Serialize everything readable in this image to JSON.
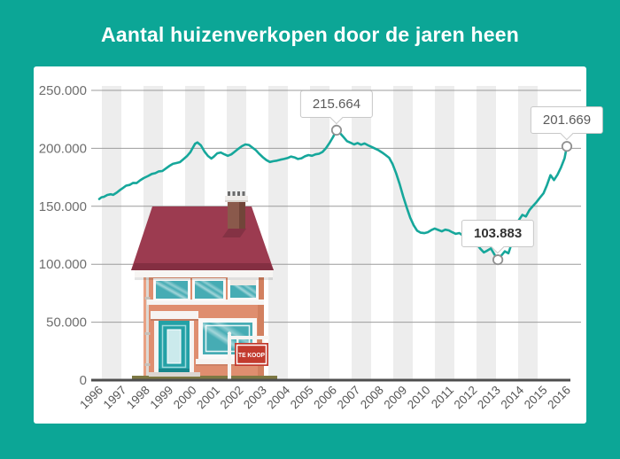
{
  "page": {
    "title": "Aantal huizenverkopen door de jaren heen",
    "background_color": "#0CA696",
    "card_color": "#FFFFFF"
  },
  "illustration": {
    "name": "huis-te-koop",
    "sign_text": "TE KOOP",
    "roof_color": "#9C3B50",
    "wall_color": "#DF8E6F",
    "sign_color": "#C23B2E"
  },
  "chart_data": {
    "type": "line",
    "title": "Aantal huizenverkopen door de jaren heen",
    "xlabel": "",
    "ylabel": "",
    "xlim": [
      1996,
      2016
    ],
    "ylim": [
      0,
      250000
    ],
    "grid": "horizontal",
    "background_stripes": true,
    "line_color": "#16A79B",
    "x_ticks": [
      "1996",
      "1997",
      "1998",
      "1999",
      "2000",
      "2001",
      "2002",
      "2003",
      "2004",
      "2005",
      "2006",
      "2007",
      "2008",
      "2009",
      "2010",
      "2011",
      "2012",
      "2013",
      "2014",
      "2015",
      "2016"
    ],
    "y_ticks": [
      {
        "value": 250000,
        "label": "250.000"
      },
      {
        "value": 200000,
        "label": "200.000"
      },
      {
        "value": 150000,
        "label": "150.000"
      },
      {
        "value": 100000,
        "label": "100.000"
      },
      {
        "value": 50000,
        "label": "50.000"
      },
      {
        "value": 0,
        "label": "0"
      }
    ],
    "series": [
      {
        "name": "huizenverkopen",
        "points": [
          [
            1996.0,
            156300
          ],
          [
            1996.1,
            157800
          ],
          [
            1996.2,
            158200
          ],
          [
            1996.35,
            159800
          ],
          [
            1996.5,
            160400
          ],
          [
            1996.6,
            159900
          ],
          [
            1996.75,
            161800
          ],
          [
            1996.9,
            164200
          ],
          [
            1997.0,
            165600
          ],
          [
            1997.15,
            167800
          ],
          [
            1997.3,
            168400
          ],
          [
            1997.45,
            170200
          ],
          [
            1997.6,
            170000
          ],
          [
            1997.75,
            172400
          ],
          [
            1997.9,
            174300
          ],
          [
            1998.1,
            176200
          ],
          [
            1998.25,
            177900
          ],
          [
            1998.4,
            178600
          ],
          [
            1998.55,
            180100
          ],
          [
            1998.7,
            180400
          ],
          [
            1998.85,
            182600
          ],
          [
            1999.0,
            184800
          ],
          [
            1999.15,
            186600
          ],
          [
            1999.3,
            187300
          ],
          [
            1999.45,
            188100
          ],
          [
            1999.6,
            190600
          ],
          [
            1999.75,
            193200
          ],
          [
            1999.9,
            196800
          ],
          [
            2000.0,
            200400
          ],
          [
            2000.1,
            203900
          ],
          [
            2000.2,
            205100
          ],
          [
            2000.35,
            202600
          ],
          [
            2000.5,
            197300
          ],
          [
            2000.65,
            193400
          ],
          [
            2000.8,
            191200
          ],
          [
            2000.9,
            192800
          ],
          [
            2001.05,
            195700
          ],
          [
            2001.2,
            196400
          ],
          [
            2001.35,
            194900
          ],
          [
            2001.5,
            193600
          ],
          [
            2001.65,
            194800
          ],
          [
            2001.8,
            197200
          ],
          [
            2001.95,
            199600
          ],
          [
            2002.1,
            201800
          ],
          [
            2002.25,
            203400
          ],
          [
            2002.4,
            202900
          ],
          [
            2002.55,
            200700
          ],
          [
            2002.7,
            198400
          ],
          [
            2002.85,
            195200
          ],
          [
            2003.0,
            192300
          ],
          [
            2003.15,
            189800
          ],
          [
            2003.3,
            188200
          ],
          [
            2003.45,
            188900
          ],
          [
            2003.6,
            189400
          ],
          [
            2003.75,
            190200
          ],
          [
            2003.9,
            190800
          ],
          [
            2004.05,
            191600
          ],
          [
            2004.2,
            192900
          ],
          [
            2004.35,
            192200
          ],
          [
            2004.5,
            190800
          ],
          [
            2004.65,
            191400
          ],
          [
            2004.8,
            193100
          ],
          [
            2004.95,
            194200
          ],
          [
            2005.1,
            193600
          ],
          [
            2005.25,
            194800
          ],
          [
            2005.4,
            195300
          ],
          [
            2005.55,
            196900
          ],
          [
            2005.7,
            200200
          ],
          [
            2005.85,
            204600
          ],
          [
            2006.0,
            209800
          ],
          [
            2006.15,
            215664
          ],
          [
            2006.3,
            213100
          ],
          [
            2006.45,
            209600
          ],
          [
            2006.6,
            206200
          ],
          [
            2006.75,
            204800
          ],
          [
            2006.9,
            203400
          ],
          [
            2007.05,
            204600
          ],
          [
            2007.2,
            203100
          ],
          [
            2007.35,
            204200
          ],
          [
            2007.5,
            202600
          ],
          [
            2007.65,
            201200
          ],
          [
            2007.8,
            199800
          ],
          [
            2007.95,
            198300
          ],
          [
            2008.1,
            196400
          ],
          [
            2008.25,
            194200
          ],
          [
            2008.4,
            191800
          ],
          [
            2008.55,
            186300
          ],
          [
            2008.7,
            178400
          ],
          [
            2008.85,
            169200
          ],
          [
            2009.0,
            158600
          ],
          [
            2009.15,
            148900
          ],
          [
            2009.3,
            140200
          ],
          [
            2009.45,
            133600
          ],
          [
            2009.6,
            128900
          ],
          [
            2009.75,
            127200
          ],
          [
            2009.9,
            126800
          ],
          [
            2010.05,
            127600
          ],
          [
            2010.2,
            129400
          ],
          [
            2010.35,
            130800
          ],
          [
            2010.5,
            129600
          ],
          [
            2010.65,
            128400
          ],
          [
            2010.8,
            129800
          ],
          [
            2010.95,
            129200
          ],
          [
            2011.1,
            127600
          ],
          [
            2011.25,
            126200
          ],
          [
            2011.4,
            126900
          ],
          [
            2011.55,
            124800
          ],
          [
            2011.7,
            122400
          ],
          [
            2011.85,
            120600
          ],
          [
            2012.0,
            119800
          ],
          [
            2012.15,
            117200
          ],
          [
            2012.3,
            113400
          ],
          [
            2012.45,
            110200
          ],
          [
            2012.6,
            111800
          ],
          [
            2012.75,
            113600
          ],
          [
            2012.9,
            108400
          ],
          [
            2013.05,
            103883
          ],
          [
            2013.2,
            107600
          ],
          [
            2013.35,
            111200
          ],
          [
            2013.5,
            109400
          ],
          [
            2013.65,
            118600
          ],
          [
            2013.8,
            129400
          ],
          [
            2013.95,
            138200
          ],
          [
            2014.1,
            142600
          ],
          [
            2014.25,
            141200
          ],
          [
            2014.4,
            146800
          ],
          [
            2014.55,
            150200
          ],
          [
            2014.7,
            153600
          ],
          [
            2014.85,
            157400
          ],
          [
            2015.0,
            161200
          ],
          [
            2015.15,
            168400
          ],
          [
            2015.3,
            176800
          ],
          [
            2015.45,
            172600
          ],
          [
            2015.6,
            177200
          ],
          [
            2015.75,
            183600
          ],
          [
            2015.9,
            191400
          ],
          [
            2016.0,
            201669
          ]
        ]
      }
    ],
    "annotations": [
      {
        "label": "215.664",
        "x": 2006.15,
        "y": 215664,
        "bold": false
      },
      {
        "label": "103.883",
        "x": 2013.05,
        "y": 103883,
        "bold": true
      },
      {
        "label": "201.669",
        "x": 2016.0,
        "y": 201669,
        "bold": false
      }
    ]
  }
}
